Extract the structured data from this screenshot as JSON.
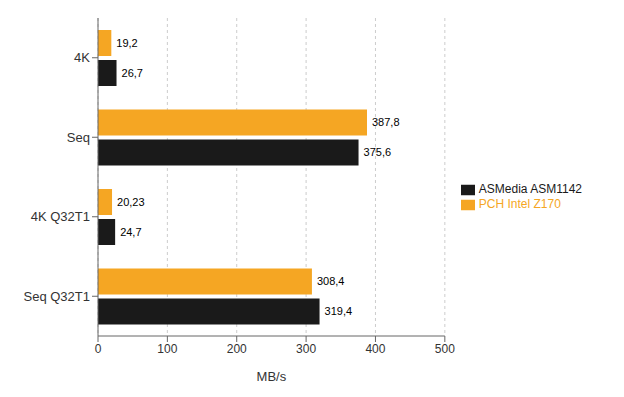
{
  "chart_data": {
    "type": "bar",
    "orientation": "horizontal",
    "categories": [
      "4K",
      "Seq",
      "4K Q32T1",
      "Seq Q32T1"
    ],
    "series": [
      {
        "name": "PCH Intel Z170",
        "color": "#F5A623",
        "values": [
          19.2,
          387.8,
          20.23,
          308.4
        ],
        "value_labels": [
          "19,2",
          "387,8",
          "20,23",
          "308,4"
        ]
      },
      {
        "name": "ASMedia ASM1142",
        "color": "#1A1A1A",
        "values": [
          26.7,
          375.6,
          24.7,
          319.4
        ],
        "value_labels": [
          "26,7",
          "375,6",
          "24,7",
          "319,4"
        ]
      }
    ],
    "xlabel": "MB/s",
    "xlim": [
      0,
      500
    ],
    "xticks": [
      0,
      100,
      200,
      300,
      400,
      500
    ],
    "grid": true,
    "legend": "right",
    "data_labels": true
  }
}
